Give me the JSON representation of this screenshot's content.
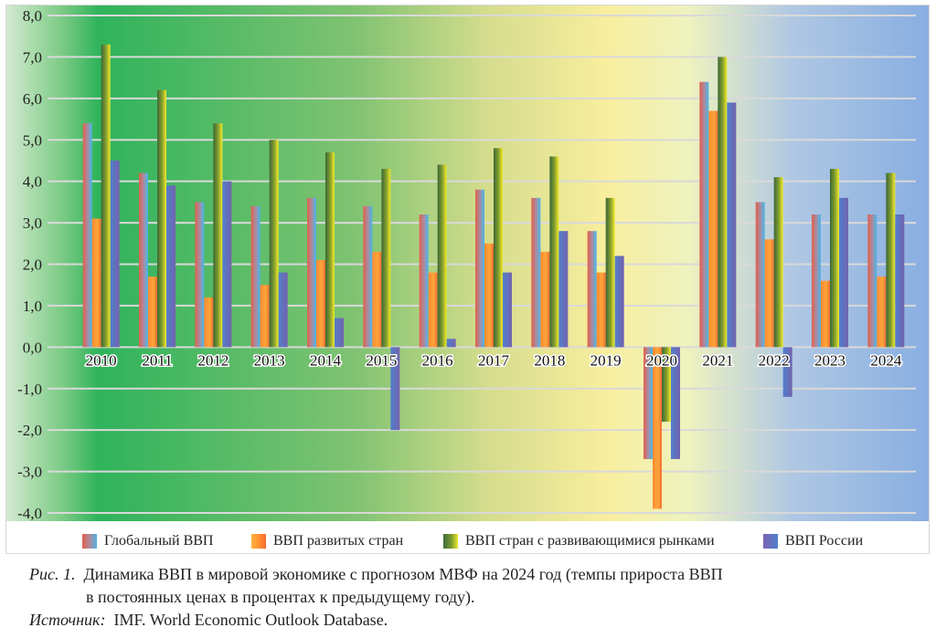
{
  "chart_data": {
    "type": "bar",
    "title": "",
    "xlabel": "",
    "ylabel": "",
    "ylim": [
      -4.0,
      8.0
    ],
    "y_ticks": [
      "8,0",
      "7,0",
      "6,0",
      "5,0",
      "4,0",
      "3,0",
      "2,0",
      "1,0",
      "0,0",
      "-1,0",
      "-2,0",
      "-3,0",
      "-4,0"
    ],
    "y_tick_values": [
      8,
      7,
      6,
      5,
      4,
      3,
      2,
      1,
      0,
      -1,
      -2,
      -3,
      -4
    ],
    "grid": true,
    "legend_position": "bottom",
    "categories": [
      "2010",
      "2011",
      "2012",
      "2013",
      "2014",
      "2015",
      "2016",
      "2017",
      "2018",
      "2019",
      "2020",
      "2021",
      "2022",
      "2023",
      "2024"
    ],
    "series": [
      {
        "name": "Глобальный ВВП",
        "key": "global",
        "values": [
          5.4,
          4.2,
          3.5,
          3.4,
          3.6,
          3.4,
          3.2,
          3.8,
          3.6,
          2.8,
          -2.7,
          6.4,
          3.5,
          3.2,
          3.2
        ]
      },
      {
        "name": "ВВП развитых стран",
        "key": "dev",
        "values": [
          3.1,
          1.7,
          1.2,
          1.5,
          2.1,
          2.3,
          1.8,
          2.5,
          2.3,
          1.8,
          -3.9,
          5.7,
          2.6,
          1.6,
          1.7
        ]
      },
      {
        "name": "ВВП стран с развивающимися рынками",
        "key": "em",
        "values": [
          7.3,
          6.2,
          5.4,
          5.0,
          4.7,
          4.3,
          4.4,
          4.8,
          4.6,
          3.6,
          -1.8,
          7.0,
          4.1,
          4.3,
          4.2
        ]
      },
      {
        "name": "ВВП России",
        "key": "ru",
        "values": [
          4.5,
          3.9,
          4.0,
          1.8,
          0.7,
          -2.0,
          0.2,
          1.8,
          2.8,
          2.2,
          -2.7,
          5.9,
          -1.2,
          3.6,
          3.2
        ]
      }
    ],
    "colors": {
      "background_stops": [
        "#cde6c6",
        "#2db35a",
        "#84c373",
        "#f7f3b0",
        "#a9c3e6",
        "#8ab0e2"
      ],
      "grid": "#d9d9d9",
      "text": "#231f20"
    }
  },
  "caption": {
    "fig_label": "Рис. 1.",
    "line1": "Динамика ВВП в мировой экономике с  прогнозом МВФ на 2024 год (темпы прироста ВВП",
    "line2": "в постоянных ценах в процентах к предыдущему году).",
    "source_label": "Источник:",
    "source_text": "IMF. World Economic Outlook Database."
  }
}
